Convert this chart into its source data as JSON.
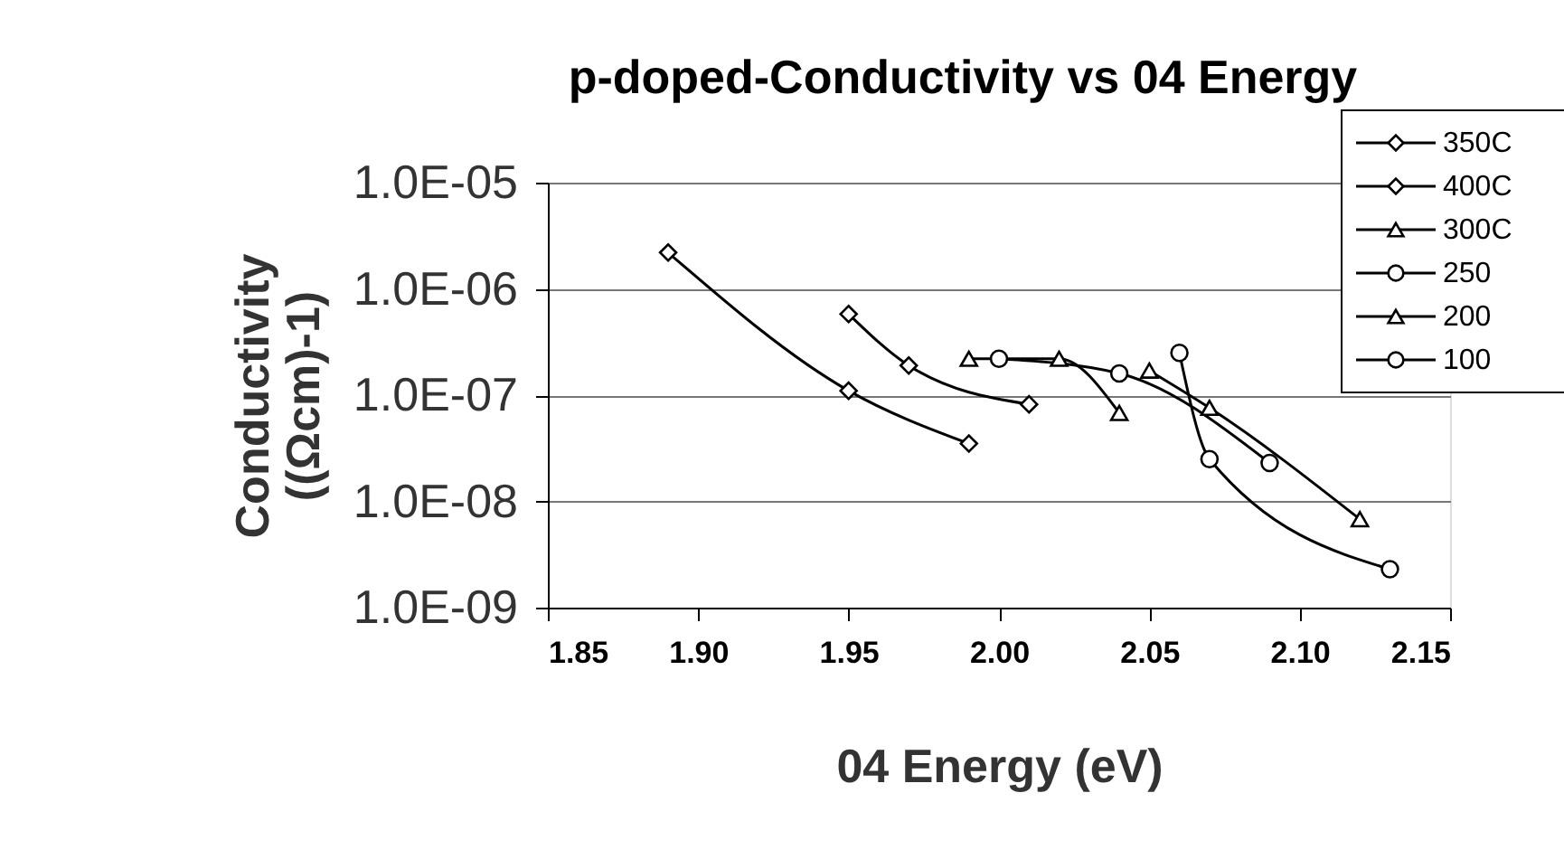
{
  "chart_data": {
    "type": "line",
    "title": "p-doped-Conductivity vs 04 Energy",
    "xlabel": "04 Energy (eV)",
    "ylabel": "Conductivity\n((Ωcm)-1)",
    "log": "y",
    "xlim": [
      1.85,
      2.15
    ],
    "xticks": [
      {
        "value": 1.85,
        "label": "1.85"
      },
      {
        "value": 1.9,
        "label": "1.90"
      },
      {
        "value": 1.95,
        "label": "1.95"
      },
      {
        "value": 2.0,
        "label": "2.00"
      },
      {
        "value": 2.05,
        "label": "2.05"
      },
      {
        "value": 2.1,
        "label": "2.10"
      },
      {
        "value": 2.15,
        "label": "2.15"
      }
    ],
    "ylim": [
      1e-09,
      1e-05
    ],
    "yticks": [
      {
        "value": 1e-09,
        "label": "1.0E-09"
      },
      {
        "value": 1e-08,
        "label": "1.0E-08"
      },
      {
        "value": 1e-07,
        "label": "1.0E-07"
      },
      {
        "value": 1e-06,
        "label": "1.0E-06"
      },
      {
        "value": 1e-05,
        "label": "1.0E-05"
      }
    ],
    "grid": "y",
    "legend": "top right",
    "series": [
      {
        "name": "350C",
        "color": "#000000",
        "marker": "diamond",
        "x": [
          1.95,
          1.97,
          2.01
        ],
        "values": [
          5.8e-07,
          1.9e-07,
          8.2e-08
        ]
      },
      {
        "name": "400C",
        "color": "#000000",
        "marker": "diamond",
        "x": [
          1.89,
          1.95,
          1.99
        ],
        "values": [
          2.2e-06,
          1.1e-07,
          3.5e-08
        ]
      },
      {
        "name": "300C",
        "color": "#000000",
        "marker": "triangle",
        "x": [
          1.99,
          2.02,
          2.04
        ],
        "values": [
          2.2e-07,
          2.2e-07,
          6.8e-08
        ]
      },
      {
        "name": "250",
        "color": "#000000",
        "marker": "circle",
        "x": [
          2.0,
          2.04,
          2.09
        ],
        "values": [
          2.2e-07,
          1.6e-07,
          2.3e-08
        ]
      },
      {
        "name": "200",
        "color": "#000000",
        "marker": "triangle",
        "x": [
          2.05,
          2.07,
          2.12
        ],
        "values": [
          1.7e-07,
          7.6e-08,
          6.8e-09
        ]
      },
      {
        "name": "100",
        "color": "#000000",
        "marker": "circle",
        "x": [
          2.06,
          2.07,
          2.13
        ],
        "values": [
          2.5e-07,
          2.5e-08,
          2.3e-09
        ]
      }
    ]
  }
}
